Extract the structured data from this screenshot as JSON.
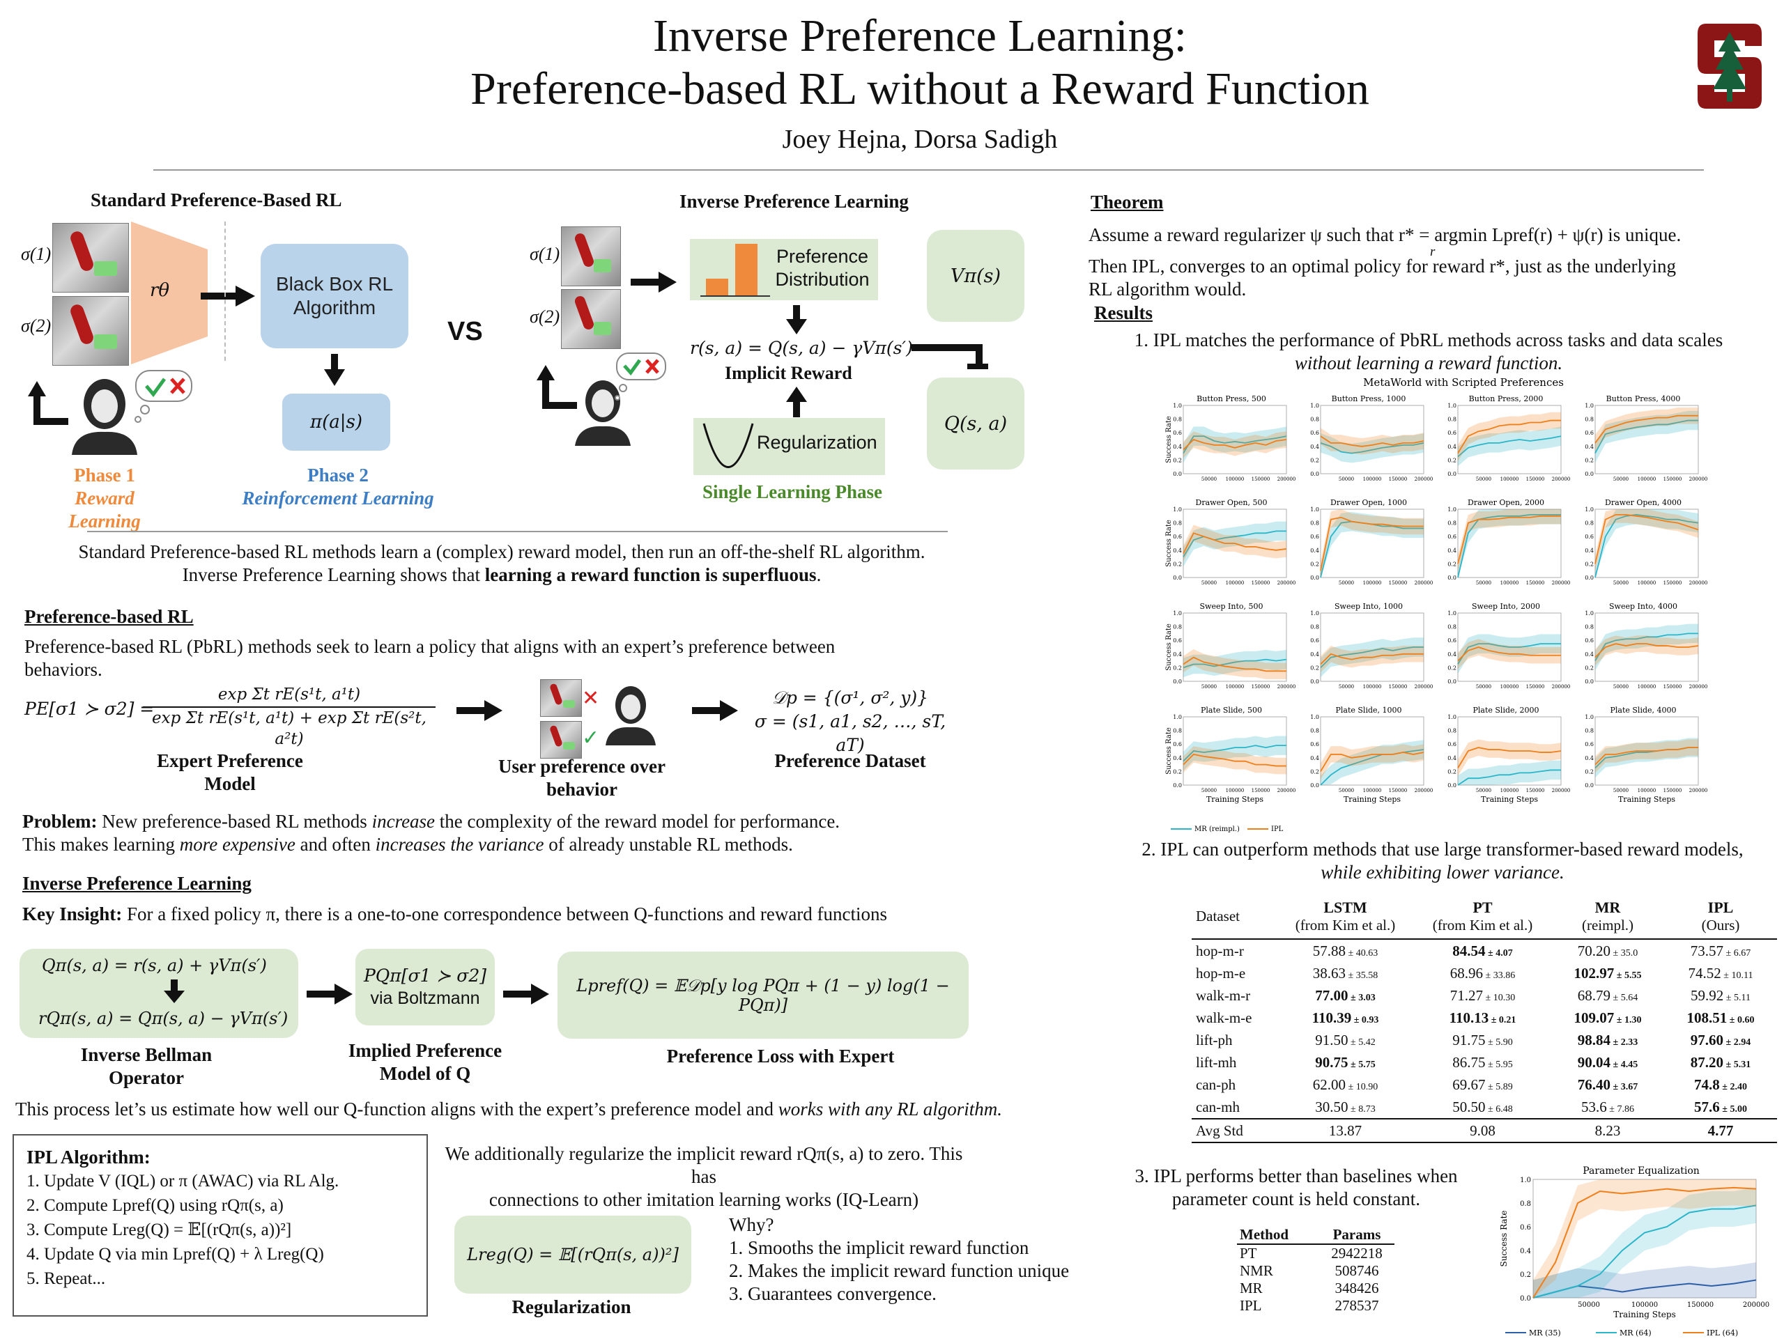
{
  "header": {
    "title_line1": "Inverse Preference Learning:",
    "title_line2": "Preference-based RL without a Reward Function",
    "authors": "Joey Hejna, Dorsa Sadigh",
    "logo_icon": "stanford-tree-logo-icon",
    "logo_color": "#8c1515"
  },
  "diagram": {
    "left_title": "Standard Preference-Based RL",
    "sigma1": "σ(1)",
    "sigma2": "σ(2)",
    "r_theta": "rθ",
    "black_box": "Black Box RL Algorithm",
    "policy": "π(a|s)",
    "phase1": "Phase 1",
    "phase1_sub": "Reward Learning",
    "phase2": "Phase 2",
    "phase2_sub": "Reinforcement Learning",
    "vs": "VS",
    "right_title": "Inverse Preference Learning",
    "pref_dist": "Preference Distribution",
    "v_box": "Vπ(s)",
    "q_box": "Q(s, a)",
    "implicit_eq": "r(s, a) = Q(s, a) − γVπ(s′)",
    "implicit_label": "Implicit Reward",
    "regularization": "Regularization",
    "single_phase": "Single Learning Phase",
    "colors": {
      "orange": "#ef8a3c",
      "blue": "#3c7dc4",
      "green": "#4a8a2a",
      "box_green": "#dcead4",
      "box_blue": "#b9d3ea"
    }
  },
  "intro": {
    "line1": "Standard Preference-based RL methods learn a (complex) reward model, then run an off-the-shelf RL algorithm.",
    "line2_a": "Inverse Preference Learning shows that ",
    "line2_b": "learning a reward function is superfluous",
    "line2_c": "."
  },
  "pbrl": {
    "heading": "Preference-based RL",
    "text": "Preference-based RL (PbRL) methods seek to learn a policy that aligns with an expert’s preference between behaviors.",
    "formula_lhs": "PE[σ1 ≻ σ2]  =",
    "formula_num": "exp Σt rE(s¹t, a¹t)",
    "formula_den": "exp Σt rE(s¹t, a¹t) + exp Σt rE(s²t, a²t)",
    "expert_caption": "Expert Preference Model",
    "user_caption": "User preference over behavior",
    "dataset_line1": "𝒟p = {(σ¹, σ², y)}",
    "dataset_line2": "σ = (s1, a1, s2, …, sT, aT)",
    "dataset_caption": "Preference Dataset",
    "problem_label": "Problem:",
    "problem_a": " New preference-based RL methods ",
    "problem_b": "increase",
    "problem_c": " the complexity of the reward model for performance.",
    "problem2_a": "This makes learning ",
    "problem2_b": "more expensive",
    "problem2_c": " and often ",
    "problem2_d": "increases the variance",
    "problem2_e": " of already unstable RL methods."
  },
  "ipl": {
    "heading": "Inverse Preference Learning",
    "insight_label": "Key Insight:",
    "insight_text": " For a fixed policy π, there is a one-to-one correspondence between Q-functions and reward functions",
    "bellman1": "Qπ(s, a) = r(s, a) + γVπ(s′)",
    "bellman2": "rQπ(s, a) = Qπ(s, a) − γVπ(s′)",
    "bellman_caption": "Inverse Bellman Operator",
    "implied1": "PQπ[σ1 ≻ σ2]",
    "implied2": "via Boltzmann",
    "implied_caption": "Implied Preference Model of Q",
    "loss": "Lpref(Q) = 𝔼𝒟p[y log PQπ + (1 − y) log(1 − PQπ)]",
    "loss_caption": "Preference Loss with Expert",
    "process_a": "This process let’s us estimate how well our Q-function aligns with the expert’s preference model and ",
    "process_b": "works with any RL algorithm."
  },
  "algorithm": {
    "title": "IPL Algorithm:",
    "steps": [
      "1.   Update V (IQL) or π (AWAC) via RL Alg.",
      "2.   Compute Lpref(Q) using rQπ(s, a)",
      "3.   Compute Lreg(Q) = 𝔼[(rQπ(s, a))²]",
      "4.   Update Q via min Lpref(Q) + λ Lreg(Q)",
      "5.   Repeat..."
    ]
  },
  "regular": {
    "line1": "We additionally regularize the implicit reward rQπ(s, a) to zero. This has",
    "line2": "connections to other imitation learning works (IQ-Learn)",
    "formula": "Lreg(Q) = 𝔼[(rQπ(s, a))²]",
    "caption": "Regularization",
    "why": "Why?",
    "reasons": [
      "1. Smooths the implicit reward function",
      "2. Makes the implicit reward function unique",
      "3. Guarantees convergence."
    ]
  },
  "theorem": {
    "heading": "Theorem",
    "line1": "Assume a reward regularizer ψ such that r* = argmin Lpref(r) + ψ(r) is unique.",
    "argmin_sub": "r",
    "line2": "Then IPL, converges to an optimal policy for reward r*, just as the underlying",
    "line3": "RL algorithm would."
  },
  "results": {
    "heading": "Results",
    "r1_a": "1. IPL matches the performance of PbRL methods across tasks and data scales",
    "r1_b": "without learning a reward function.",
    "r2_a": "2. IPL can outperform methods that use large transformer-based reward models,",
    "r2_b": "while exhibiting lower variance.",
    "r3_a": "3. IPL performs better than baselines when",
    "r3_b": "parameter count is held constant."
  },
  "table": {
    "headers": [
      [
        "Dataset",
        ""
      ],
      [
        "LSTM",
        "(from Kim et al.)"
      ],
      [
        "PT",
        "(from Kim et al.)"
      ],
      [
        "MR",
        "(reimpl.)"
      ],
      [
        "IPL",
        "(Ours)"
      ]
    ],
    "rows": [
      {
        "name": "hop-m-r",
        "cells": [
          [
            "57.88",
            "± 40.63",
            false
          ],
          [
            "84.54",
            "± 4.07",
            true
          ],
          [
            "70.20",
            "± 35.0",
            false
          ],
          [
            "73.57",
            "± 6.67",
            false
          ]
        ]
      },
      {
        "name": "hop-m-e",
        "cells": [
          [
            "38.63",
            "± 35.58",
            false
          ],
          [
            "68.96",
            "± 33.86",
            false
          ],
          [
            "102.97",
            "± 5.55",
            true
          ],
          [
            "74.52",
            "± 10.11",
            false
          ]
        ]
      },
      {
        "name": "walk-m-r",
        "cells": [
          [
            "77.00",
            "± 3.03",
            true
          ],
          [
            "71.27",
            "± 10.30",
            false
          ],
          [
            "68.79",
            "± 5.64",
            false
          ],
          [
            "59.92",
            "± 5.11",
            false
          ]
        ]
      },
      {
        "name": "walk-m-e",
        "cells": [
          [
            "110.39",
            "± 0.93",
            true
          ],
          [
            "110.13",
            "± 0.21",
            true
          ],
          [
            "109.07",
            "± 1.30",
            true
          ],
          [
            "108.51",
            "± 0.60",
            true
          ]
        ]
      },
      {
        "name": "lift-ph",
        "cells": [
          [
            "91.50",
            "± 5.42",
            false
          ],
          [
            "91.75",
            "± 5.90",
            false
          ],
          [
            "98.84",
            "± 2.33",
            true
          ],
          [
            "97.60",
            "± 2.94",
            true
          ]
        ]
      },
      {
        "name": "lift-mh",
        "cells": [
          [
            "90.75",
            "± 5.75",
            true
          ],
          [
            "86.75",
            "± 5.95",
            false
          ],
          [
            "90.04",
            "± 4.45",
            true
          ],
          [
            "87.20",
            "± 5.31",
            true
          ]
        ]
      },
      {
        "name": "can-ph",
        "cells": [
          [
            "62.00",
            "± 10.90",
            false
          ],
          [
            "69.67",
            "± 5.89",
            false
          ],
          [
            "76.40",
            "± 3.67",
            true
          ],
          [
            "74.8",
            "± 2.40",
            true
          ]
        ]
      },
      {
        "name": "can-mh",
        "cells": [
          [
            "30.50",
            "± 8.73",
            false
          ],
          [
            "50.50",
            "± 6.48",
            false
          ],
          [
            "53.6",
            "± 7.86",
            false
          ],
          [
            "57.6",
            "± 5.00",
            true
          ]
        ]
      }
    ],
    "avg_label": "Avg Std",
    "avg": [
      [
        "13.87",
        false
      ],
      [
        "9.08",
        false
      ],
      [
        "8.23",
        false
      ],
      [
        "4.77",
        true
      ]
    ]
  },
  "params": {
    "headers": [
      "Method",
      "Params"
    ],
    "rows": [
      [
        "PT",
        "2942218"
      ],
      [
        "NMR",
        "508746"
      ],
      [
        "MR",
        "348426"
      ],
      [
        "IPL",
        "278537"
      ]
    ]
  },
  "chart_data": [
    {
      "type": "line",
      "title": "MetaWorld with Scripted Preferences",
      "xlabel": "Training Steps",
      "ylabel": "Success Rate",
      "ylim": [
        0,
        1
      ],
      "xlim": [
        0,
        200000
      ],
      "xticks": [
        "50000",
        "100000",
        "150000",
        "200000"
      ],
      "yticks": [
        "0.0",
        "0.2",
        "0.4",
        "0.6",
        "0.8",
        "1.0"
      ],
      "legend": [
        "MR (reimpl.)",
        "IPL"
      ],
      "legend_position": "bottom",
      "series_colors": {
        "MR (reimpl.)": "#2bb5c8",
        "IPL": "#ef7f1a"
      },
      "x": [
        0,
        20000,
        40000,
        60000,
        80000,
        100000,
        120000,
        140000,
        160000,
        180000,
        200000
      ],
      "subplots": [
        {
          "title": "Button Press, 500",
          "mr": [
            0.3,
            0.55,
            0.55,
            0.48,
            0.45,
            0.47,
            0.45,
            0.48,
            0.5,
            0.52,
            0.55
          ],
          "ipl": [
            0.35,
            0.5,
            0.45,
            0.42,
            0.42,
            0.38,
            0.42,
            0.45,
            0.42,
            0.48,
            0.5
          ]
        },
        {
          "title": "Button Press, 1000",
          "mr": [
            0.45,
            0.4,
            0.32,
            0.3,
            0.32,
            0.35,
            0.38,
            0.4,
            0.42,
            0.42,
            0.45
          ],
          "ipl": [
            0.55,
            0.45,
            0.45,
            0.42,
            0.4,
            0.42,
            0.45,
            0.42,
            0.45,
            0.45,
            0.48
          ]
        },
        {
          "title": "Button Press, 2000",
          "mr": [
            0.25,
            0.38,
            0.42,
            0.45,
            0.45,
            0.48,
            0.5,
            0.48,
            0.5,
            0.52,
            0.55
          ],
          "ipl": [
            0.3,
            0.55,
            0.62,
            0.65,
            0.7,
            0.72,
            0.72,
            0.75,
            0.75,
            0.78,
            0.78
          ]
        },
        {
          "title": "Button Press, 4000",
          "mr": [
            0.3,
            0.58,
            0.62,
            0.65,
            0.68,
            0.7,
            0.72,
            0.72,
            0.75,
            0.78,
            0.78
          ],
          "ipl": [
            0.45,
            0.65,
            0.7,
            0.75,
            0.78,
            0.8,
            0.82,
            0.82,
            0.85,
            0.85,
            0.85
          ]
        },
        {
          "title": "Drawer Open, 500",
          "mr": [
            0.3,
            0.55,
            0.6,
            0.55,
            0.58,
            0.6,
            0.62,
            0.65,
            0.65,
            0.68,
            0.68
          ],
          "ipl": [
            0.35,
            0.65,
            0.6,
            0.55,
            0.5,
            0.5,
            0.45,
            0.45,
            0.42,
            0.4,
            0.42
          ]
        },
        {
          "title": "Drawer Open, 1000",
          "mr": [
            0.0,
            0.6,
            0.8,
            0.82,
            0.8,
            0.78,
            0.75,
            0.75,
            0.72,
            0.72,
            0.72
          ],
          "ipl": [
            0.1,
            0.85,
            0.88,
            0.82,
            0.8,
            0.78,
            0.78,
            0.76,
            0.75,
            0.75,
            0.75
          ]
        },
        {
          "title": "Drawer Open, 2000",
          "mr": [
            0.0,
            0.65,
            0.85,
            0.88,
            0.9,
            0.9,
            0.9,
            0.92,
            0.92,
            0.92,
            0.92
          ],
          "ipl": [
            0.2,
            0.8,
            0.85,
            0.85,
            0.86,
            0.88,
            0.88,
            0.88,
            0.9,
            0.9,
            0.9
          ]
        },
        {
          "title": "Drawer Open, 4000",
          "mr": [
            0.0,
            0.6,
            0.85,
            0.9,
            0.92,
            0.9,
            0.88,
            0.85,
            0.85,
            0.82,
            0.8
          ],
          "ipl": [
            0.2,
            0.85,
            0.92,
            0.92,
            0.9,
            0.88,
            0.85,
            0.82,
            0.8,
            0.75,
            0.7
          ]
        },
        {
          "title": "Sweep Into, 500",
          "mr": [
            0.2,
            0.25,
            0.25,
            0.22,
            0.25,
            0.28,
            0.3,
            0.3,
            0.32,
            0.3,
            0.32
          ],
          "ipl": [
            0.25,
            0.35,
            0.28,
            0.25,
            0.22,
            0.2,
            0.18,
            0.18,
            0.15,
            0.15,
            0.15
          ]
        },
        {
          "title": "Sweep Into, 1000",
          "mr": [
            0.2,
            0.35,
            0.38,
            0.4,
            0.42,
            0.45,
            0.48,
            0.45,
            0.48,
            0.5,
            0.5
          ],
          "ipl": [
            0.25,
            0.4,
            0.35,
            0.32,
            0.35,
            0.35,
            0.38,
            0.38,
            0.4,
            0.4,
            0.4
          ]
        },
        {
          "title": "Sweep Into, 2000",
          "mr": [
            0.25,
            0.5,
            0.55,
            0.55,
            0.52,
            0.5,
            0.5,
            0.52,
            0.55,
            0.55,
            0.55
          ],
          "ipl": [
            0.3,
            0.45,
            0.5,
            0.45,
            0.42,
            0.4,
            0.4,
            0.38,
            0.38,
            0.38,
            0.38
          ]
        },
        {
          "title": "Sweep Into, 4000",
          "mr": [
            0.3,
            0.55,
            0.6,
            0.62,
            0.62,
            0.65,
            0.65,
            0.68,
            0.68,
            0.7,
            0.7
          ],
          "ipl": [
            0.35,
            0.5,
            0.55,
            0.52,
            0.55,
            0.55,
            0.52,
            0.52,
            0.5,
            0.5,
            0.52
          ]
        },
        {
          "title": "Plate Slide, 500",
          "mr": [
            0.35,
            0.5,
            0.48,
            0.5,
            0.52,
            0.55,
            0.55,
            0.58,
            0.55,
            0.58,
            0.58
          ],
          "ipl": [
            0.3,
            0.45,
            0.42,
            0.4,
            0.38,
            0.35,
            0.35,
            0.3,
            0.3,
            0.28,
            0.28
          ]
        },
        {
          "title": "Plate Slide, 1000",
          "mr": [
            0.0,
            0.15,
            0.25,
            0.3,
            0.35,
            0.4,
            0.45,
            0.45,
            0.48,
            0.5,
            0.52
          ],
          "ipl": [
            0.2,
            0.45,
            0.45,
            0.4,
            0.42,
            0.45,
            0.45,
            0.45,
            0.48,
            0.45,
            0.48
          ]
        },
        {
          "title": "Plate Slide, 2000",
          "mr": [
            0.0,
            0.1,
            0.1,
            0.12,
            0.15,
            0.15,
            0.18,
            0.18,
            0.2,
            0.22,
            0.22
          ],
          "ipl": [
            0.25,
            0.5,
            0.55,
            0.52,
            0.52,
            0.5,
            0.5,
            0.5,
            0.48,
            0.48,
            0.5
          ]
        },
        {
          "title": "Plate Slide, 4000",
          "mr": [
            0.25,
            0.4,
            0.42,
            0.45,
            0.48,
            0.48,
            0.5,
            0.52,
            0.52,
            0.55,
            0.55
          ],
          "ipl": [
            0.3,
            0.45,
            0.45,
            0.48,
            0.5,
            0.5,
            0.5,
            0.52,
            0.52,
            0.55,
            0.55
          ]
        }
      ]
    },
    {
      "type": "line",
      "title": "Parameter Equalization",
      "xlabel": "Training Steps",
      "ylabel": "Success Rate",
      "ylim": [
        0,
        1
      ],
      "xlim": [
        0,
        200000
      ],
      "xticks": [
        "50000",
        "100000",
        "150000",
        "200000"
      ],
      "yticks": [
        "0.0",
        "0.2",
        "0.4",
        "0.6",
        "0.8",
        "1.0"
      ],
      "legend_position": "bottom",
      "x": [
        0,
        20000,
        40000,
        60000,
        80000,
        100000,
        120000,
        140000,
        160000,
        180000,
        200000
      ],
      "series": [
        {
          "name": "MR (35)",
          "color": "#2d5fa8",
          "values": [
            0.0,
            0.05,
            0.1,
            0.08,
            0.05,
            0.08,
            0.1,
            0.12,
            0.1,
            0.12,
            0.15
          ]
        },
        {
          "name": "MR (64)",
          "color": "#2bb5c8",
          "values": [
            0.0,
            0.05,
            0.1,
            0.2,
            0.4,
            0.55,
            0.6,
            0.72,
            0.75,
            0.75,
            0.78
          ]
        },
        {
          "name": "IPL (64)",
          "color": "#ef7f1a",
          "values": [
            0.0,
            0.3,
            0.8,
            0.9,
            0.88,
            0.9,
            0.92,
            0.9,
            0.92,
            0.93,
            0.92
          ]
        }
      ]
    }
  ]
}
